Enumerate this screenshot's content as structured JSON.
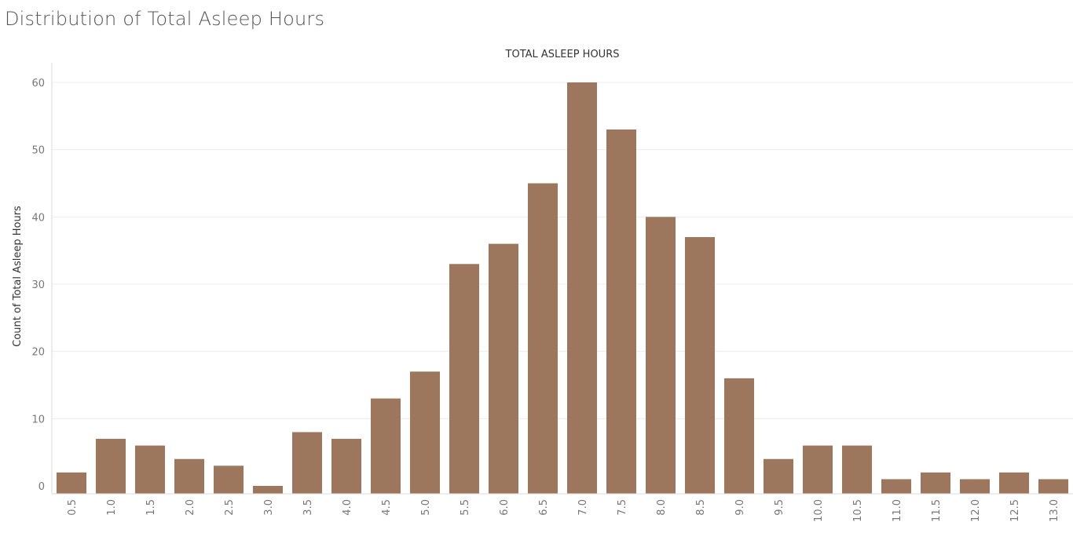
{
  "page": {
    "title": "Distribution of Total Asleep Hours"
  },
  "chart_data": {
    "type": "bar",
    "title": "Distribution of Total Asleep Hours",
    "xlabel": "TOTAL ASLEEP HOURS",
    "ylabel": "Count of Total Asleep Hours",
    "categories": [
      "0.5",
      "1.0",
      "1.5",
      "2.0",
      "2.5",
      "3.0",
      "3.5",
      "4.0",
      "4.5",
      "5.0",
      "5.5",
      "6.0",
      "6.5",
      "7.0",
      "7.5",
      "8.0",
      "8.5",
      "9.0",
      "9.5",
      "10.0",
      "10.5",
      "11.0",
      "11.5",
      "12.0",
      "12.5",
      "13.0"
    ],
    "values": [
      2,
      7,
      6,
      4,
      3,
      0,
      8,
      7,
      13,
      17,
      33,
      36,
      45,
      60,
      53,
      40,
      37,
      16,
      4,
      6,
      6,
      1,
      2,
      1,
      2,
      1
    ],
    "ylim": [
      0,
      60
    ],
    "yticks": [
      0,
      10,
      20,
      30,
      40,
      50,
      60
    ],
    "grid": true,
    "legend": "none",
    "bar_color": "#9c775d"
  }
}
